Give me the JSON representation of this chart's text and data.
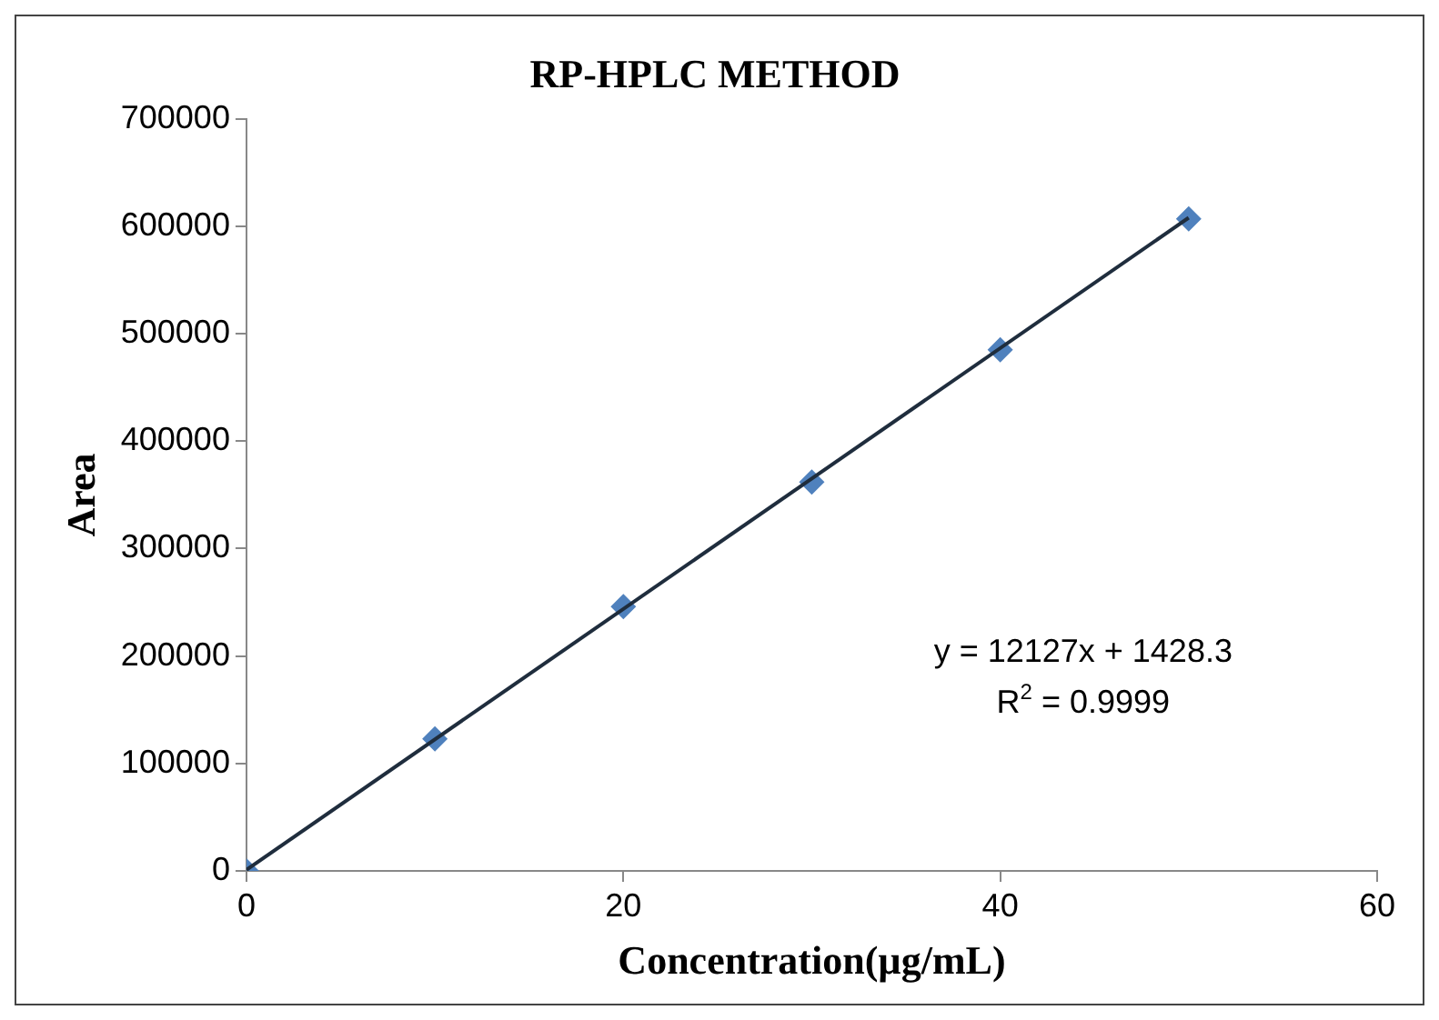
{
  "chart_data": {
    "type": "scatter",
    "title": "RP-HPLC METHOD",
    "xlabel": "Concentration(µg/mL)",
    "ylabel": "Area",
    "xlim": [
      0,
      60
    ],
    "xticks": [
      0,
      20,
      40,
      60
    ],
    "ylim": [
      0,
      700000
    ],
    "yticks": [
      0,
      100000,
      200000,
      300000,
      400000,
      500000,
      600000,
      700000
    ],
    "grid": false,
    "legend": false,
    "marker": "diamond",
    "series": [
      {
        "type": "scatter",
        "color": "#4f81bd",
        "x": [
          0,
          10,
          20,
          30,
          40,
          50
        ],
        "values": [
          0,
          123000,
          246000,
          362000,
          485000,
          607000
        ]
      },
      {
        "type": "line",
        "color": "#1f2d3d",
        "marker": "none",
        "x": [
          0,
          50
        ],
        "values": [
          1000,
          608000
        ]
      }
    ],
    "annotations": [
      "y = 12127x + 1428.3",
      "R$^{2}$ = 0.9999"
    ]
  }
}
